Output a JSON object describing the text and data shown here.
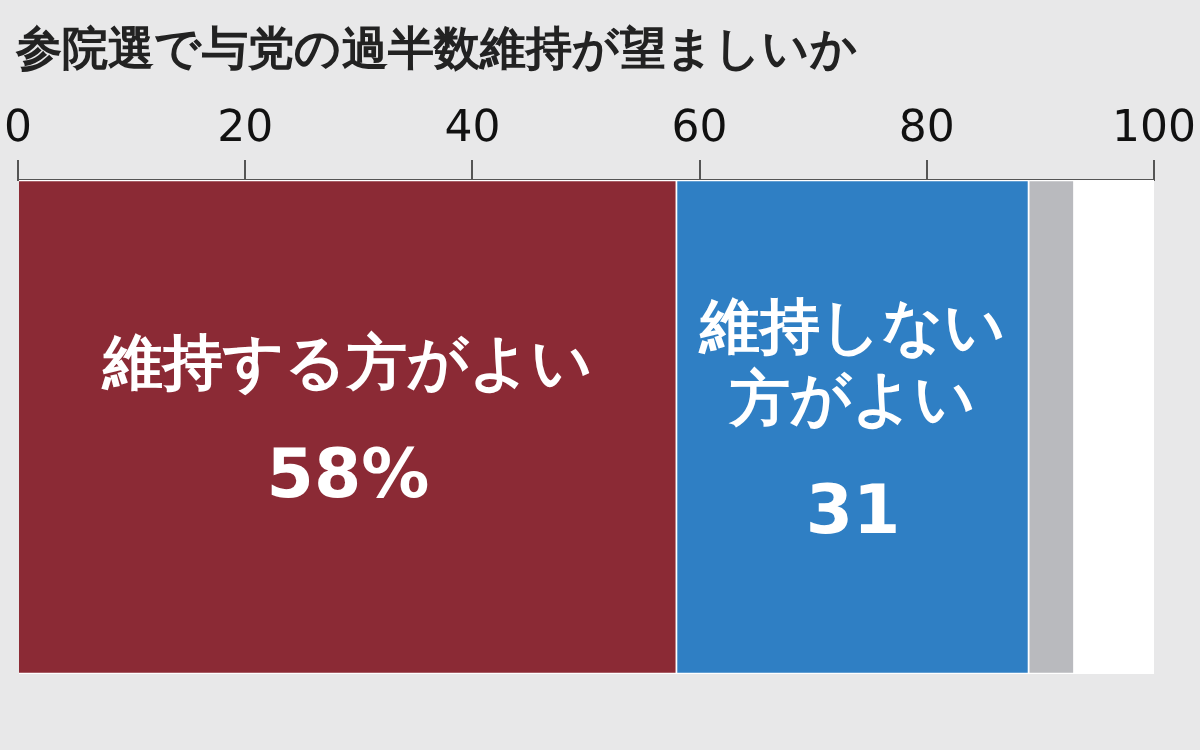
{
  "chart_data": {
    "type": "bar",
    "title": "参院選で与党の過半数維持が望ましいか",
    "orientation": "horizontal",
    "stacked": true,
    "categories": [
      null
    ],
    "series": [
      {
        "name": "維持する方がよい",
        "color": "#8b2a35",
        "values": [
          58
        ],
        "value_labels": [
          "58%"
        ]
      },
      {
        "name": "維持しない方がよい",
        "color": "#2f7fc4",
        "values": [
          31
        ],
        "value_labels": [
          "31"
        ]
      },
      {
        "color": "#b9babe",
        "values": [
          4
        ]
      },
      {
        "color": "#ffffff",
        "values": [
          7
        ]
      }
    ],
    "xlim": [
      0,
      100
    ],
    "xticks": [
      0,
      20,
      40,
      60,
      80,
      100
    ],
    "grid": false,
    "legend": false
  }
}
